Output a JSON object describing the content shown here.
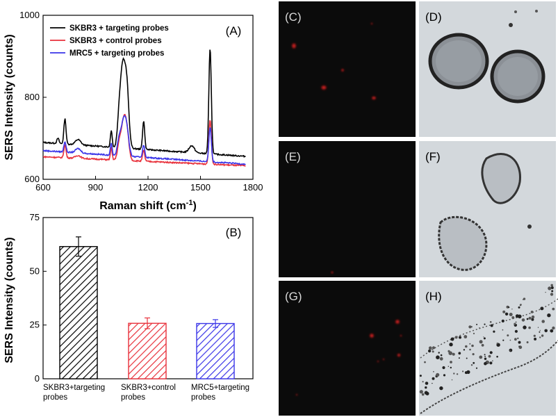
{
  "chart_data": [
    {
      "type": "line",
      "panel_label": "(A)",
      "xlabel_main": "Raman shift (cm",
      "xlabel_sup": "-1",
      "xlabel_end": ")",
      "ylabel": "SERS Intensity (counts)",
      "xlim": [
        600,
        1800
      ],
      "ylim": [
        600,
        1000
      ],
      "xticks": [
        600,
        900,
        1200,
        1500,
        1800
      ],
      "yticks": [
        600,
        800,
        1000
      ],
      "legend_position": "top-left",
      "series": [
        {
          "name": "SKBR3 + targeting probes",
          "color": "#000000",
          "baseline": 690,
          "baseline_end": 656,
          "peaks": [
            [
              685,
              700,
              6
            ],
            [
              725,
              748,
              6
            ],
            [
              800,
              697,
              15
            ],
            [
              990,
              720,
              5
            ],
            [
              1035,
              752,
              10
            ],
            [
              1055,
              856,
              12
            ],
            [
              1078,
              830,
              12
            ],
            [
              1175,
              742,
              6
            ],
            [
              1450,
              682,
              15
            ],
            [
              1555,
              918,
              7
            ]
          ]
        },
        {
          "name": "SKBR3 + control probes",
          "color": "#e8313b",
          "baseline": 655,
          "baseline_end": 633,
          "peaks": [
            [
              725,
              684,
              6
            ],
            [
              800,
              658,
              15
            ],
            [
              990,
              675,
              5
            ],
            [
              1035,
              685,
              10
            ],
            [
              1058,
              729,
              12
            ],
            [
              1078,
              720,
              12
            ],
            [
              1175,
              670,
              6
            ],
            [
              1555,
              745,
              7
            ]
          ]
        },
        {
          "name": "MRC5 + targeting probes",
          "color": "#3a35e8",
          "baseline": 670,
          "baseline_end": 637,
          "peaks": [
            [
              725,
              692,
              6
            ],
            [
              800,
              675,
              15
            ],
            [
              990,
              688,
              5
            ],
            [
              1035,
              698,
              10
            ],
            [
              1058,
              730,
              12
            ],
            [
              1078,
              722,
              12
            ],
            [
              1175,
              684,
              6
            ],
            [
              1555,
              727,
              7
            ]
          ]
        }
      ]
    },
    {
      "type": "bar",
      "panel_label": "(B)",
      "ylabel": "SERS Intensity (counts)",
      "ylim": [
        0,
        75
      ],
      "yticks": [
        0,
        25,
        50,
        75
      ],
      "categories": [
        [
          "SKBR3+targeting",
          "probes"
        ],
        [
          "SKBR3+control",
          "probes"
        ],
        [
          "MRC5+targeting",
          "probes"
        ]
      ],
      "values": [
        61.5,
        25.8,
        25.7
      ],
      "errors": [
        4.5,
        2.5,
        1.8
      ],
      "colors": [
        "#000000",
        "#e8313b",
        "#3a35e8"
      ]
    }
  ],
  "image_panels": [
    {
      "label": "(C)",
      "kind": "fluorescence"
    },
    {
      "label": "(D)",
      "kind": "brightfield"
    },
    {
      "label": "(E)",
      "kind": "fluorescence"
    },
    {
      "label": "(F)",
      "kind": "brightfield"
    },
    {
      "label": "(G)",
      "kind": "fluorescence"
    },
    {
      "label": "(H)",
      "kind": "brightfield"
    }
  ]
}
